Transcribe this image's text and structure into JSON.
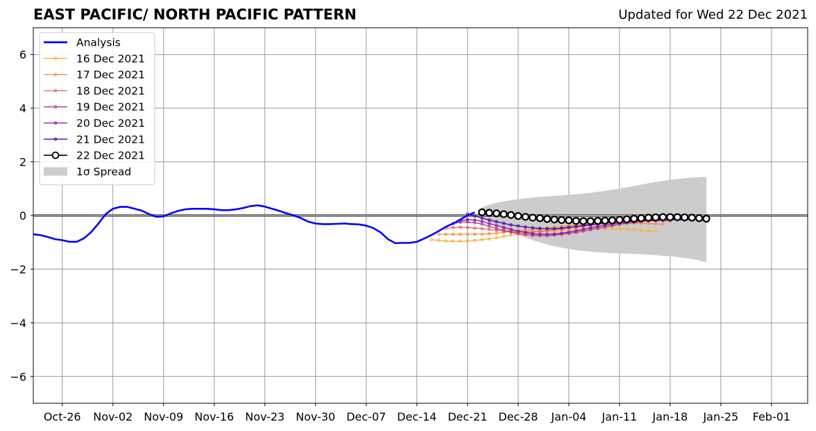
{
  "header": {
    "title": "EAST PACIFIC/ NORTH PACIFIC PATTERN",
    "subtitle": "Updated for Wed 22 Dec 2021"
  },
  "chart_data": {
    "type": "line",
    "title": "EAST PACIFIC/ NORTH PACIFIC PATTERN",
    "subtitle": "Updated for Wed 22 Dec 2021",
    "xlabel": "",
    "ylabel": "",
    "xlim": [
      "2021-10-22",
      "2022-02-06"
    ],
    "ylim": [
      -7,
      7
    ],
    "x_ticks": [
      "2021-10-26",
      "2021-11-02",
      "2021-11-09",
      "2021-11-16",
      "2021-11-23",
      "2021-11-30",
      "2021-12-07",
      "2021-12-14",
      "2021-12-21",
      "2021-12-28",
      "2022-01-04",
      "2022-01-11",
      "2022-01-18",
      "2022-01-25",
      "2022-02-01"
    ],
    "x_tick_labels": [
      "Oct-26",
      "Nov-02",
      "Nov-09",
      "Nov-16",
      "Nov-23",
      "Nov-30",
      "Dec-07",
      "Dec-14",
      "Dec-21",
      "Dec-28",
      "Jan-04",
      "Jan-11",
      "Jan-18",
      "Jan-25",
      "Feb-01"
    ],
    "y_ticks": [
      -6,
      -4,
      -2,
      0,
      2,
      4,
      6
    ],
    "y_tick_labels": [
      "−6",
      "−4",
      "−2",
      "0",
      "2",
      "4",
      "6"
    ],
    "grid": true,
    "legend_position": "top-left",
    "series": [
      {
        "name": "Analysis",
        "color": "#0000ff",
        "style": "thick-line",
        "start": "2021-10-22",
        "values": [
          -0.7,
          -0.73,
          -0.8,
          -0.88,
          -0.92,
          -0.98,
          -0.98,
          -0.85,
          -0.62,
          -0.3,
          0.05,
          0.25,
          0.32,
          0.32,
          0.25,
          0.18,
          0.05,
          -0.05,
          -0.03,
          0.08,
          0.17,
          0.23,
          0.25,
          0.25,
          0.25,
          0.23,
          0.2,
          0.2,
          0.23,
          0.28,
          0.35,
          0.38,
          0.33,
          0.25,
          0.17,
          0.08,
          0.0,
          -0.1,
          -0.23,
          -0.3,
          -0.32,
          -0.32,
          -0.31,
          -0.3,
          -0.32,
          -0.33,
          -0.38,
          -0.47,
          -0.63,
          -0.88,
          -1.03,
          -1.02,
          -1.02,
          -0.98,
          -0.86,
          -0.73,
          -0.58,
          -0.42,
          -0.3,
          -0.15,
          0.0,
          0.12
        ]
      },
      {
        "name": "16 Dec 2021",
        "color": "#f9b33a",
        "style": "thin-dots",
        "start": "2021-12-16",
        "values": [
          -0.9,
          -0.93,
          -0.95,
          -0.96,
          -0.96,
          -0.95,
          -0.93,
          -0.9,
          -0.87,
          -0.83,
          -0.78,
          -0.73,
          -0.69,
          -0.66,
          -0.63,
          -0.6,
          -0.58,
          -0.56,
          -0.54,
          -0.52,
          -0.5,
          -0.49,
          -0.48,
          -0.48,
          -0.48,
          -0.49,
          -0.5,
          -0.51,
          -0.52,
          -0.55,
          -0.57,
          -0.6
        ]
      },
      {
        "name": "17 Dec 2021",
        "color": "#f38c46",
        "style": "thin-dots",
        "start": "2021-12-17",
        "values": [
          -0.7,
          -0.7,
          -0.7,
          -0.7,
          -0.7,
          -0.7,
          -0.7,
          -0.68,
          -0.66,
          -0.63,
          -0.6,
          -0.58,
          -0.55,
          -0.52,
          -0.5,
          -0.47,
          -0.44,
          -0.41,
          -0.38,
          -0.36,
          -0.34,
          -0.32,
          -0.3,
          -0.29,
          -0.28,
          -0.28,
          -0.28,
          -0.28,
          -0.29,
          -0.3,
          -0.31,
          -0.33
        ]
      },
      {
        "name": "18 Dec 2021",
        "color": "#df6566",
        "style": "thin-dots",
        "start": "2021-12-18",
        "values": [
          -0.48,
          -0.45,
          -0.44,
          -0.45,
          -0.47,
          -0.49,
          -0.52,
          -0.55,
          -0.58,
          -0.6,
          -0.62,
          -0.62,
          -0.61,
          -0.59,
          -0.56,
          -0.53,
          -0.5,
          -0.46,
          -0.43,
          -0.4,
          -0.36,
          -0.33,
          -0.3,
          -0.27,
          -0.25,
          -0.23,
          -0.22,
          -0.21,
          -0.2,
          -0.2,
          -0.2,
          -0.2
        ]
      },
      {
        "name": "19 Dec 2021",
        "color": "#b83289",
        "style": "thin-dots",
        "start": "2021-12-19",
        "values": [
          -0.3,
          -0.25,
          -0.24,
          -0.27,
          -0.32,
          -0.4,
          -0.48,
          -0.55,
          -0.62,
          -0.67,
          -0.71,
          -0.74,
          -0.75,
          -0.75,
          -0.73,
          -0.7,
          -0.67,
          -0.63,
          -0.58,
          -0.53,
          -0.48,
          -0.43,
          -0.38,
          -0.33,
          -0.29,
          -0.26,
          -0.23,
          -0.2,
          -0.18,
          -0.17,
          -0.16,
          -0.16
        ]
      },
      {
        "name": "20 Dec 2021",
        "color": "#8b0aa5",
        "style": "thin-dots",
        "start": "2021-12-20",
        "values": [
          -0.2,
          -0.15,
          -0.17,
          -0.22,
          -0.3,
          -0.38,
          -0.45,
          -0.52,
          -0.58,
          -0.63,
          -0.68,
          -0.7,
          -0.7,
          -0.69,
          -0.66,
          -0.62,
          -0.57,
          -0.52,
          -0.46,
          -0.41,
          -0.36,
          -0.32,
          -0.28,
          -0.25,
          -0.22,
          -0.2,
          -0.18,
          -0.17,
          -0.16,
          -0.16,
          -0.16,
          -0.17
        ]
      },
      {
        "name": "21 Dec 2021",
        "color": "#4a02a0",
        "style": "thin-dots",
        "start": "2021-12-21",
        "values": [
          0.05,
          -0.02,
          -0.1,
          -0.17,
          -0.23,
          -0.29,
          -0.35,
          -0.39,
          -0.43,
          -0.46,
          -0.48,
          -0.49,
          -0.49,
          -0.47,
          -0.44,
          -0.41,
          -0.38,
          -0.34,
          -0.31,
          -0.28,
          -0.25,
          -0.22,
          -0.2,
          -0.18,
          -0.17,
          -0.16,
          -0.15,
          -0.15,
          -0.15,
          -0.15,
          -0.15,
          -0.15
        ]
      },
      {
        "name": "22 Dec 2021",
        "color": "#000000",
        "style": "open-circles",
        "start": "2021-12-23",
        "values": [
          0.12,
          0.1,
          0.08,
          0.05,
          0.02,
          -0.02,
          -0.05,
          -0.08,
          -0.1,
          -0.13,
          -0.15,
          -0.17,
          -0.18,
          -0.2,
          -0.21,
          -0.21,
          -0.2,
          -0.19,
          -0.18,
          -0.16,
          -0.14,
          -0.12,
          -0.1,
          -0.08,
          -0.07,
          -0.06,
          -0.06,
          -0.06,
          -0.07,
          -0.08,
          -0.1,
          -0.12
        ]
      }
    ],
    "spread": {
      "name": "1σ Spread",
      "color": "#cccccc",
      "start": "2021-12-23",
      "upper": [
        0.3,
        0.4,
        0.47,
        0.53,
        0.57,
        0.61,
        0.64,
        0.67,
        0.69,
        0.71,
        0.73,
        0.75,
        0.77,
        0.79,
        0.82,
        0.85,
        0.88,
        0.92,
        0.96,
        1.0,
        1.05,
        1.1,
        1.15,
        1.2,
        1.25,
        1.29,
        1.33,
        1.36,
        1.39,
        1.41,
        1.43,
        1.44
      ],
      "lower": [
        -0.1,
        -0.25,
        -0.38,
        -0.5,
        -0.62,
        -0.72,
        -0.82,
        -0.92,
        -1.0,
        -1.08,
        -1.15,
        -1.2,
        -1.25,
        -1.29,
        -1.32,
        -1.35,
        -1.37,
        -1.39,
        -1.4,
        -1.41,
        -1.42,
        -1.43,
        -1.44,
        -1.46,
        -1.48,
        -1.5,
        -1.52,
        -1.55,
        -1.58,
        -1.62,
        -1.67,
        -1.75
      ]
    },
    "legend": [
      {
        "label": "Analysis",
        "series": 0
      },
      {
        "label": "16 Dec 2021",
        "series": 1
      },
      {
        "label": "17 Dec 2021",
        "series": 2
      },
      {
        "label": "18 Dec 2021",
        "series": 3
      },
      {
        "label": "19 Dec 2021",
        "series": 4
      },
      {
        "label": "20 Dec 2021",
        "series": 5
      },
      {
        "label": "21 Dec 2021",
        "series": 6
      },
      {
        "label": "22 Dec 2021",
        "series": 7
      },
      {
        "label": "1σ Spread",
        "series": "spread"
      }
    ]
  }
}
